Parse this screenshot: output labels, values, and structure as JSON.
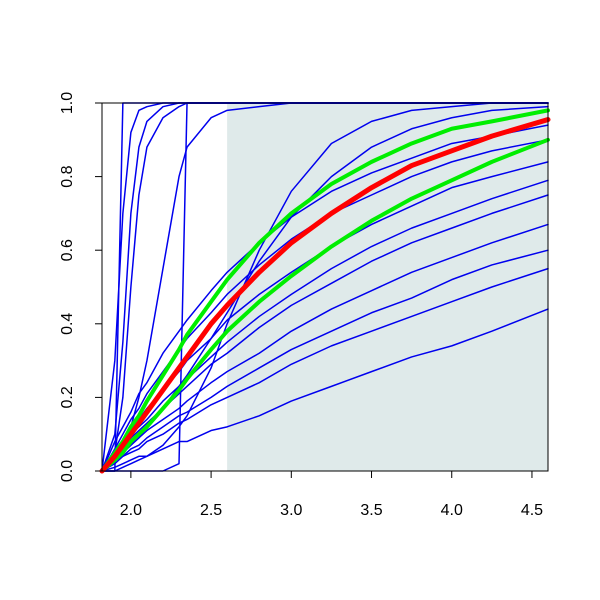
{
  "chart_data": {
    "type": "line",
    "x": [
      1.82,
      1.9,
      1.95,
      2.0,
      2.05,
      2.1,
      2.2,
      2.3,
      2.35,
      2.5,
      2.6,
      2.8,
      3.0,
      3.25,
      3.5,
      3.75,
      4.0,
      4.25,
      4.6
    ],
    "xlim": [
      1.82,
      4.6
    ],
    "ylim": [
      0,
      1
    ],
    "xticks": [
      {
        "value": 2,
        "label": "2.0"
      },
      2.5,
      {
        "value": 3,
        "label": "3.0"
      },
      3.5,
      {
        "value": 4,
        "label": "4.0"
      },
      4.5
    ],
    "yticks": [
      {
        "value": 0,
        "label": "0.0"
      },
      0.2,
      0.4,
      0.6,
      0.8,
      {
        "value": 1,
        "label": "1.0"
      }
    ],
    "shaded_region": {
      "xlim": [
        2.6,
        4.6
      ],
      "color": "#dfeaea"
    },
    "series": [
      {
        "color": "#0000ee",
        "width": 1.5,
        "values": [
          0,
          0,
          1,
          1,
          1,
          1,
          1,
          1,
          1,
          1,
          1,
          1,
          1,
          1,
          1,
          1,
          1,
          1,
          1
        ]
      },
      {
        "color": "#0000ee",
        "width": 1.5,
        "values": [
          0,
          0.3,
          0.7,
          0.92,
          0.98,
          0.99,
          1,
          1,
          1,
          1,
          1,
          1,
          1,
          1,
          1,
          1,
          1,
          1,
          1
        ]
      },
      {
        "color": "#0000ee",
        "width": 1.5,
        "values": [
          0,
          0.1,
          0.35,
          0.7,
          0.88,
          0.95,
          0.99,
          1,
          1,
          1,
          1,
          1,
          1,
          1,
          1,
          1,
          1,
          1,
          1
        ]
      },
      {
        "color": "#0000ee",
        "width": 1.5,
        "values": [
          0,
          0.05,
          0.2,
          0.5,
          0.75,
          0.88,
          0.96,
          0.99,
          1,
          1,
          1,
          1,
          1,
          1,
          1,
          1,
          1,
          1,
          1
        ]
      },
      {
        "color": "#0000ee",
        "width": 1.5,
        "values": [
          0,
          0,
          0,
          0,
          0,
          0,
          0,
          0.02,
          1,
          1,
          1,
          1,
          1,
          1,
          1,
          1,
          1,
          1,
          1
        ]
      },
      {
        "color": "#0000ee",
        "width": 1.5,
        "values": [
          0,
          0.03,
          0.06,
          0.12,
          0.2,
          0.3,
          0.55,
          0.8,
          0.88,
          0.96,
          0.98,
          0.99,
          1,
          1,
          1,
          1,
          1,
          1,
          1
        ]
      },
      {
        "color": "#0000ee",
        "width": 1.5,
        "values": [
          0,
          0,
          0.01,
          0.02,
          0.03,
          0.04,
          0.07,
          0.12,
          0.15,
          0.28,
          0.4,
          0.6,
          0.76,
          0.89,
          0.95,
          0.98,
          0.99,
          1,
          1
        ]
      },
      {
        "color": "#0000ee",
        "width": 1.5,
        "values": [
          0,
          0.03,
          0.05,
          0.07,
          0.09,
          0.12,
          0.17,
          0.23,
          0.26,
          0.36,
          0.43,
          0.57,
          0.69,
          0.8,
          0.88,
          0.93,
          0.96,
          0.98,
          0.99
        ]
      },
      {
        "color": "#0000ee",
        "width": 1.5,
        "values": [
          0,
          0.08,
          0.12,
          0.16,
          0.21,
          0.24,
          0.32,
          0.38,
          0.41,
          0.49,
          0.54,
          0.62,
          0.69,
          0.76,
          0.81,
          0.85,
          0.89,
          0.91,
          0.94
        ]
      },
      {
        "color": "#0000ee",
        "width": 1.5,
        "values": [
          0,
          0.06,
          0.1,
          0.14,
          0.17,
          0.21,
          0.27,
          0.33,
          0.36,
          0.43,
          0.48,
          0.56,
          0.63,
          0.7,
          0.75,
          0.8,
          0.84,
          0.87,
          0.9
        ]
      },
      {
        "color": "#0000ee",
        "width": 1.5,
        "values": [
          0,
          0.05,
          0.08,
          0.11,
          0.14,
          0.17,
          0.22,
          0.27,
          0.3,
          0.36,
          0.41,
          0.48,
          0.54,
          0.61,
          0.67,
          0.72,
          0.77,
          0.8,
          0.84
        ]
      },
      {
        "color": "#0000ee",
        "width": 1.5,
        "values": [
          0,
          0.04,
          0.07,
          0.1,
          0.12,
          0.14,
          0.19,
          0.23,
          0.25,
          0.31,
          0.35,
          0.42,
          0.48,
          0.55,
          0.61,
          0.66,
          0.7,
          0.74,
          0.79
        ]
      },
      {
        "color": "#0000ee",
        "width": 1.5,
        "values": [
          0,
          0.04,
          0.06,
          0.09,
          0.11,
          0.13,
          0.17,
          0.21,
          0.23,
          0.29,
          0.32,
          0.39,
          0.45,
          0.51,
          0.57,
          0.62,
          0.66,
          0.7,
          0.75
        ]
      },
      {
        "color": "#0000ee",
        "width": 1.5,
        "values": [
          0,
          0.03,
          0.05,
          0.07,
          0.09,
          0.11,
          0.14,
          0.17,
          0.19,
          0.24,
          0.27,
          0.32,
          0.38,
          0.44,
          0.49,
          0.54,
          0.58,
          0.62,
          0.67
        ]
      },
      {
        "color": "#0000ee",
        "width": 1.5,
        "values": [
          0,
          0.03,
          0.04,
          0.06,
          0.07,
          0.09,
          0.12,
          0.15,
          0.16,
          0.2,
          0.23,
          0.28,
          0.33,
          0.38,
          0.43,
          0.47,
          0.52,
          0.56,
          0.6
        ]
      },
      {
        "color": "#0000ee",
        "width": 1.5,
        "values": [
          0,
          0.02,
          0.04,
          0.05,
          0.06,
          0.08,
          0.1,
          0.13,
          0.14,
          0.18,
          0.2,
          0.24,
          0.29,
          0.34,
          0.38,
          0.42,
          0.46,
          0.5,
          0.55
        ]
      },
      {
        "color": "#0000ee",
        "width": 1.5,
        "values": [
          0,
          0.01,
          0.02,
          0.03,
          0.04,
          0.04,
          0.06,
          0.08,
          0.08,
          0.11,
          0.12,
          0.15,
          0.19,
          0.23,
          0.27,
          0.31,
          0.34,
          0.38,
          0.44
        ]
      },
      {
        "color": "#00ee00",
        "width": 4,
        "values": [
          0,
          0.05,
          0.08,
          0.12,
          0.15,
          0.19,
          0.26,
          0.33,
          0.37,
          0.46,
          0.52,
          0.62,
          0.7,
          0.78,
          0.84,
          0.89,
          0.93,
          0.95,
          0.98
        ]
      },
      {
        "color": "#00ee00",
        "width": 4,
        "values": [
          0,
          0.03,
          0.05,
          0.08,
          0.1,
          0.12,
          0.17,
          0.22,
          0.25,
          0.33,
          0.38,
          0.46,
          0.53,
          0.61,
          0.68,
          0.74,
          0.79,
          0.84,
          0.9
        ]
      },
      {
        "color": "#ff0000",
        "width": 5,
        "values": [
          0,
          0.04,
          0.07,
          0.1,
          0.13,
          0.16,
          0.22,
          0.28,
          0.31,
          0.4,
          0.45,
          0.54,
          0.62,
          0.7,
          0.77,
          0.83,
          0.87,
          0.91,
          0.955
        ]
      }
    ]
  }
}
